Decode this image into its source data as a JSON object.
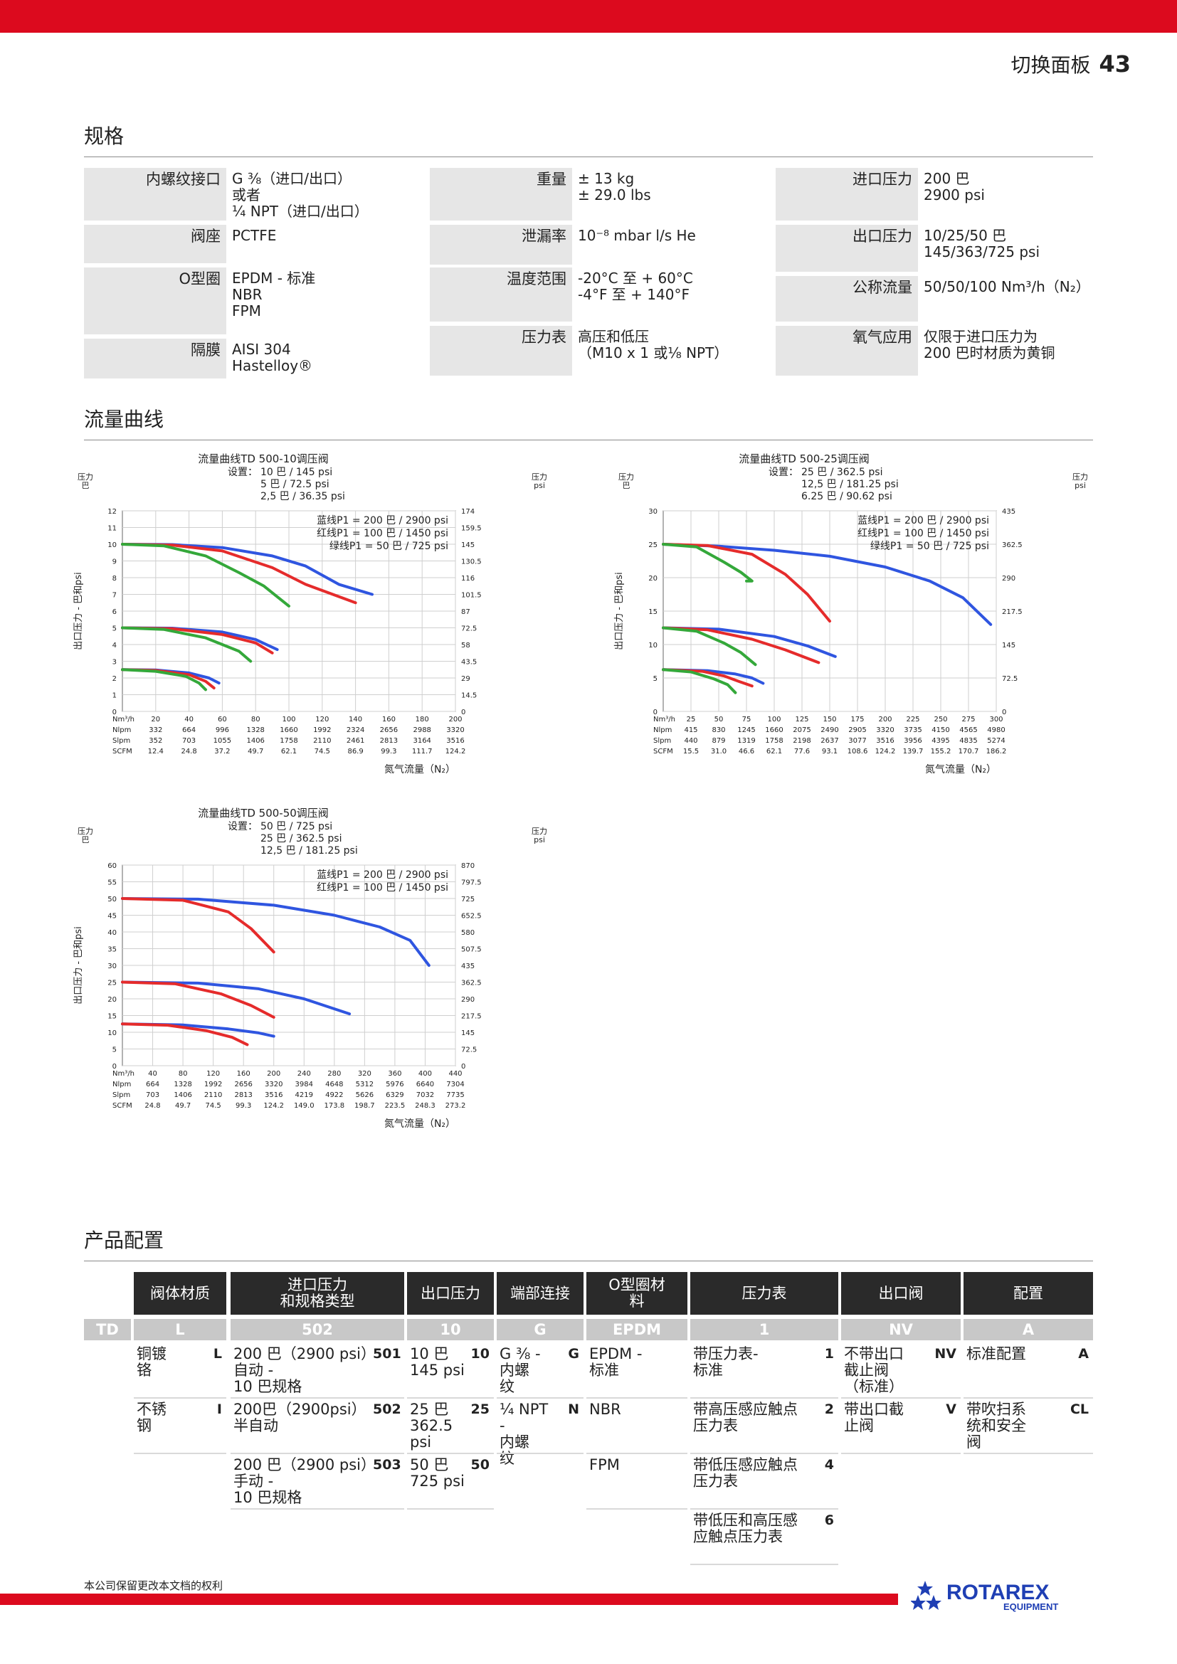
{
  "header": {
    "title": "切换面板",
    "page_number": "43"
  },
  "sections": {
    "specs": "规格",
    "flow": "流量曲线",
    "config": "产品配置"
  },
  "specs": {
    "col1": [
      {
        "label": "内螺纹接口",
        "value": "G ⅜（进口/出口）\n或者\n¼ NPT（进口/出口）"
      },
      {
        "label": "阀座",
        "value": "PCTFE"
      },
      {
        "label": "O型圈",
        "value": "EPDM - 标准\nNBR\nFPM"
      },
      {
        "label": "隔膜",
        "value": "AISI 304\nHastelloy®"
      }
    ],
    "col2": [
      {
        "label": "重量",
        "value": "± 13 kg\n± 29.0 lbs"
      },
      {
        "label": "泄漏率",
        "value": "10⁻⁸ mbar l/s He"
      },
      {
        "label": "温度范围",
        "value": "-20°C 至 + 60°C\n-4°F 至 + 140°F"
      },
      {
        "label": "压力表",
        "value": "高压和低压\n（M10 x 1 或⅛ NPT）"
      }
    ],
    "col3": [
      {
        "label": "进口压力",
        "value": "200 巴\n2900 psi"
      },
      {
        "label": "出口压力",
        "value": "10/25/50 巴\n145/363/725 psi"
      },
      {
        "label": "公称流量",
        "value": "50/50/100 Nm³/h（N₂）"
      },
      {
        "label": "氧气应用",
        "value": "仅限于进口压力为\n200 巴时材质为黄铜"
      }
    ]
  },
  "chart_data": [
    {
      "type": "line",
      "title": "流量曲线TD 500-10调压阀",
      "settings_label": "设置：",
      "settings": [
        "10 巴 / 145 psi",
        "5 巴 / 72.5 psi",
        "2,5 巴 / 36.35 psi"
      ],
      "ylabel_left_unit": "压力\n巴",
      "ylabel_right_unit": "压力\npsi",
      "ylabel": "出口压力 - 巴和psi",
      "xlabel": "氮气流量（N₂）",
      "ylim": [
        0,
        12
      ],
      "y_ticks": [
        0,
        1,
        2,
        3,
        4,
        5,
        6,
        7,
        8,
        9,
        10,
        11,
        12
      ],
      "y2_ticks": [
        "0",
        "14.5",
        "29",
        "43.5",
        "58",
        "72.5",
        "87",
        "101.5",
        "116",
        "130.5",
        "145",
        "159.5",
        "174"
      ],
      "xlim": [
        0,
        200
      ],
      "x_rows": [
        {
          "name": "Nm³/h",
          "values": [
            "20",
            "40",
            "60",
            "80",
            "100",
            "120",
            "140",
            "160",
            "180",
            "200"
          ]
        },
        {
          "name": "Nlpm",
          "values": [
            "332",
            "664",
            "996",
            "1328",
            "1660",
            "1992",
            "2324",
            "2656",
            "2988",
            "3320"
          ]
        },
        {
          "name": "Slpm",
          "values": [
            "352",
            "703",
            "1055",
            "1406",
            "1758",
            "2110",
            "2461",
            "2813",
            "3164",
            "3516"
          ]
        },
        {
          "name": "SCFM",
          "values": [
            "12.4",
            "24.8",
            "37.2",
            "49.7",
            "62.1",
            "74.5",
            "86.9",
            "99.3",
            "111.7",
            "124.2"
          ]
        }
      ],
      "legend": [
        "蓝线P1 = 200 巴 / 2900 psi",
        "红线P1 = 100 巴 / 1450 psi",
        "绿线P1 = 50 巴 / 725 psi"
      ],
      "colors": {
        "blue": "#2f55e0",
        "red": "#e52b2b",
        "green": "#34a83a"
      },
      "series": [
        {
          "color": "blue",
          "x": [
            0,
            30,
            60,
            90,
            110,
            130,
            150
          ],
          "y": [
            10,
            9.98,
            9.8,
            9.3,
            8.7,
            7.6,
            7.0
          ]
        },
        {
          "color": "red",
          "x": [
            0,
            30,
            60,
            90,
            110,
            140
          ],
          "y": [
            10,
            9.95,
            9.6,
            8.6,
            7.6,
            6.5
          ]
        },
        {
          "color": "green",
          "x": [
            0,
            25,
            50,
            70,
            85,
            100
          ],
          "y": [
            10,
            9.9,
            9.3,
            8.3,
            7.5,
            6.3
          ]
        },
        {
          "color": "blue",
          "x": [
            0,
            30,
            60,
            80,
            93
          ],
          "y": [
            5,
            4.98,
            4.75,
            4.3,
            3.7
          ]
        },
        {
          "color": "red",
          "x": [
            0,
            30,
            60,
            80,
            90
          ],
          "y": [
            5,
            4.95,
            4.6,
            4.1,
            3.5
          ]
        },
        {
          "color": "green",
          "x": [
            0,
            25,
            50,
            70,
            77
          ],
          "y": [
            5,
            4.9,
            4.4,
            3.6,
            3.0
          ]
        },
        {
          "color": "blue",
          "x": [
            0,
            20,
            40,
            52,
            58
          ],
          "y": [
            2.5,
            2.48,
            2.3,
            2.0,
            1.7
          ]
        },
        {
          "color": "red",
          "x": [
            0,
            20,
            40,
            50,
            55
          ],
          "y": [
            2.5,
            2.45,
            2.2,
            1.8,
            1.4
          ]
        },
        {
          "color": "green",
          "x": [
            0,
            20,
            38,
            46,
            50
          ],
          "y": [
            2.5,
            2.4,
            2.1,
            1.7,
            1.3
          ]
        }
      ]
    },
    {
      "type": "line",
      "title": "流量曲线TD 500-25调压阀",
      "settings_label": "设置：",
      "settings": [
        "25 巴 / 362.5 psi",
        "12,5 巴 / 181.25 psi",
        "6.25 巴 / 90.62 psi"
      ],
      "ylabel_left_unit": "压力\n巴",
      "ylabel_right_unit": "压力\npsi",
      "ylabel": "出口压力 - 巴和psi",
      "xlabel": "氮气流量（N₂）",
      "ylim": [
        0,
        30
      ],
      "y_ticks": [
        0,
        5,
        10,
        15,
        20,
        25,
        30
      ],
      "y2_ticks": [
        "0",
        "72.5",
        "145",
        "217.5",
        "290",
        "362.5",
        "435"
      ],
      "xlim": [
        0,
        300
      ],
      "x_rows": [
        {
          "name": "Nm³/h",
          "values": [
            "25",
            "50",
            "75",
            "100",
            "125",
            "150",
            "175",
            "200",
            "225",
            "250",
            "275",
            "300"
          ]
        },
        {
          "name": "Nlpm",
          "values": [
            "415",
            "830",
            "1245",
            "1660",
            "2075",
            "2490",
            "2905",
            "3320",
            "3735",
            "4150",
            "4565",
            "4980"
          ]
        },
        {
          "name": "Slpm",
          "values": [
            "440",
            "879",
            "1319",
            "1758",
            "2198",
            "2637",
            "3077",
            "3516",
            "3956",
            "4395",
            "4835",
            "5274"
          ]
        },
        {
          "name": "SCFM",
          "values": [
            "15.5",
            "31.0",
            "46.6",
            "62.1",
            "77.6",
            "93.1",
            "108.6",
            "124.2",
            "139.7",
            "155.2",
            "170.7",
            "186.2"
          ]
        }
      ],
      "legend": [
        "蓝线P1 = 200 巴 / 2900 psi",
        "红线P1 = 100 巴 / 1450 psi",
        "绿线P1 = 50 巴 / 725 psi"
      ],
      "colors": {
        "blue": "#2f55e0",
        "red": "#e52b2b",
        "green": "#34a83a"
      },
      "series": [
        {
          "color": "blue",
          "x": [
            0,
            50,
            100,
            150,
            200,
            240,
            270,
            295
          ],
          "y": [
            25,
            24.7,
            24.1,
            23.2,
            21.6,
            19.5,
            17,
            13
          ]
        },
        {
          "color": "red",
          "x": [
            0,
            40,
            80,
            110,
            130,
            150
          ],
          "y": [
            25,
            24.8,
            23.5,
            20.5,
            17.5,
            13.5
          ]
        },
        {
          "color": "green",
          "x": [
            0,
            30,
            55,
            70,
            80,
            75
          ],
          "y": [
            25,
            24.6,
            22.3,
            20.8,
            19.5,
            19.5
          ]
        },
        {
          "color": "blue",
          "x": [
            0,
            50,
            100,
            130,
            155
          ],
          "y": [
            12.5,
            12.3,
            11.2,
            9.8,
            8.2
          ]
        },
        {
          "color": "red",
          "x": [
            0,
            40,
            80,
            110,
            140
          ],
          "y": [
            12.5,
            12.2,
            10.8,
            9.2,
            7.3
          ]
        },
        {
          "color": "green",
          "x": [
            0,
            30,
            55,
            70,
            83
          ],
          "y": [
            12.5,
            12,
            10.2,
            8.8,
            7.0
          ]
        },
        {
          "color": "blue",
          "x": [
            0,
            40,
            65,
            80,
            90
          ],
          "y": [
            6.25,
            6.1,
            5.6,
            5.0,
            4.2
          ]
        },
        {
          "color": "red",
          "x": [
            0,
            35,
            55,
            68,
            80
          ],
          "y": [
            6.25,
            6.0,
            5.3,
            4.5,
            3.8
          ]
        },
        {
          "color": "green",
          "x": [
            0,
            25,
            45,
            58,
            65
          ],
          "y": [
            6.25,
            5.9,
            4.9,
            4.0,
            2.8
          ]
        }
      ]
    },
    {
      "type": "line",
      "title": "流量曲线TD 500-50调压阀",
      "settings_label": "设置：",
      "settings": [
        "50 巴 / 725 psi",
        "25 巴 / 362.5 psi",
        "12,5 巴 / 181.25 psi"
      ],
      "ylabel_left_unit": "压力\n巴",
      "ylabel_right_unit": "压力\npsi",
      "ylabel": "出口压力 - 巴和psi",
      "xlabel": "氮气流量（N₂）",
      "ylim": [
        0,
        60
      ],
      "y_ticks": [
        0,
        5,
        10,
        15,
        20,
        25,
        30,
        35,
        40,
        45,
        50,
        55,
        60
      ],
      "y2_ticks": [
        "0",
        "72.5",
        "145",
        "217.5",
        "290",
        "362.5",
        "435",
        "507.5",
        "580",
        "652.5",
        "725",
        "797.5",
        "870"
      ],
      "xlim": [
        0,
        440
      ],
      "x_rows": [
        {
          "name": "Nm³/h",
          "values": [
            "40",
            "80",
            "120",
            "160",
            "200",
            "240",
            "280",
            "320",
            "360",
            "400",
            "440"
          ]
        },
        {
          "name": "Nlpm",
          "values": [
            "664",
            "1328",
            "1992",
            "2656",
            "3320",
            "3984",
            "4648",
            "5312",
            "5976",
            "6640",
            "7304"
          ]
        },
        {
          "name": "Slpm",
          "values": [
            "703",
            "1406",
            "2110",
            "2813",
            "3516",
            "4219",
            "4922",
            "5626",
            "6329",
            "7032",
            "7735"
          ]
        },
        {
          "name": "SCFM",
          "values": [
            "24.8",
            "49.7",
            "74.5",
            "99.3",
            "124.2",
            "149.0",
            "173.8",
            "198.7",
            "223.5",
            "248.3",
            "273.2"
          ]
        }
      ],
      "legend": [
        "蓝线P1 = 200 巴 / 2900 psi",
        "红线P1 = 100 巴 / 1450 psi"
      ],
      "colors": {
        "blue": "#2f55e0",
        "red": "#e52b2b"
      },
      "series": [
        {
          "color": "blue",
          "x": [
            0,
            100,
            200,
            280,
            340,
            380,
            405
          ],
          "y": [
            50,
            49.8,
            48,
            45,
            41.5,
            37.5,
            30
          ]
        },
        {
          "color": "red",
          "x": [
            0,
            80,
            140,
            170,
            200
          ],
          "y": [
            50,
            49.5,
            46,
            41,
            34
          ]
        },
        {
          "color": "blue",
          "x": [
            0,
            100,
            180,
            240,
            300
          ],
          "y": [
            25,
            24.7,
            23,
            20,
            15.5
          ]
        },
        {
          "color": "red",
          "x": [
            0,
            70,
            130,
            170,
            200
          ],
          "y": [
            25,
            24.5,
            21.5,
            18,
            14.5
          ]
        },
        {
          "color": "blue",
          "x": [
            0,
            80,
            140,
            180,
            200
          ],
          "y": [
            12.5,
            12.2,
            11,
            9.8,
            8.8
          ]
        },
        {
          "color": "red",
          "x": [
            0,
            60,
            110,
            145,
            165
          ],
          "y": [
            12.5,
            12.1,
            10.5,
            8.5,
            6.3
          ]
        }
      ]
    }
  ],
  "config": {
    "headers": [
      "阀体材质",
      "进口压力\n和规格类型",
      "出口压力",
      "端部连接",
      "O型圈材\n料",
      "压力表",
      "出口阀",
      "配置"
    ],
    "codes": [
      "TD",
      "L",
      "502",
      "10",
      "G",
      "EPDM",
      "1",
      "NV",
      "A"
    ],
    "body": [
      {
        "text": "铜镀\n铬",
        "code": "L"
      },
      {
        "text": "不锈\n钢",
        "code": "I"
      }
    ],
    "inlet": [
      {
        "text": "200 巴（2900 psi）\n自动 -\n10 巴规格",
        "code": "501"
      },
      {
        "text": "200巴（2900psi）\n半自动",
        "code": "502"
      },
      {
        "text": "200 巴（2900 psi）\n手动 -\n10 巴规格",
        "code": "503"
      }
    ],
    "outlet": [
      {
        "text": "10 巴\n145 psi",
        "code": "10"
      },
      {
        "text": "25 巴\n362.5\npsi",
        "code": "25"
      },
      {
        "text": "50 巴\n725 psi",
        "code": "50"
      }
    ],
    "ends": [
      {
        "text": "G ⅜ -\n内螺\n纹",
        "code": "G"
      },
      {
        "text": "¼ NPT -\n内螺\n纹",
        "code": "N"
      }
    ],
    "oring": [
      {
        "text": "EPDM -\n标准"
      },
      {
        "text": "NBR"
      },
      {
        "text": "FPM"
      }
    ],
    "gauge": [
      {
        "text": "带压力表-\n标准",
        "code": "1"
      },
      {
        "text": "带高压感应触点\n压力表",
        "code": "2"
      },
      {
        "text": "带低压感应触点\n压力表",
        "code": "4"
      },
      {
        "text": "带低压和高压感\n应触点压力表",
        "code": "6"
      }
    ],
    "valve": [
      {
        "text": "不带出口\n截止阀\n（标准）",
        "code": "NV"
      },
      {
        "text": "带出口截\n止阀",
        "code": "V"
      }
    ],
    "setup": [
      {
        "text": "标准配置",
        "code": "A"
      },
      {
        "text": "带吹扫系\n统和安全\n阀",
        "code": "CL"
      }
    ]
  },
  "footer": {
    "note": "本公司保留更改本文档的权利",
    "logo_text": "ROTAREX",
    "logo_sub": "EQUIPMENT"
  }
}
